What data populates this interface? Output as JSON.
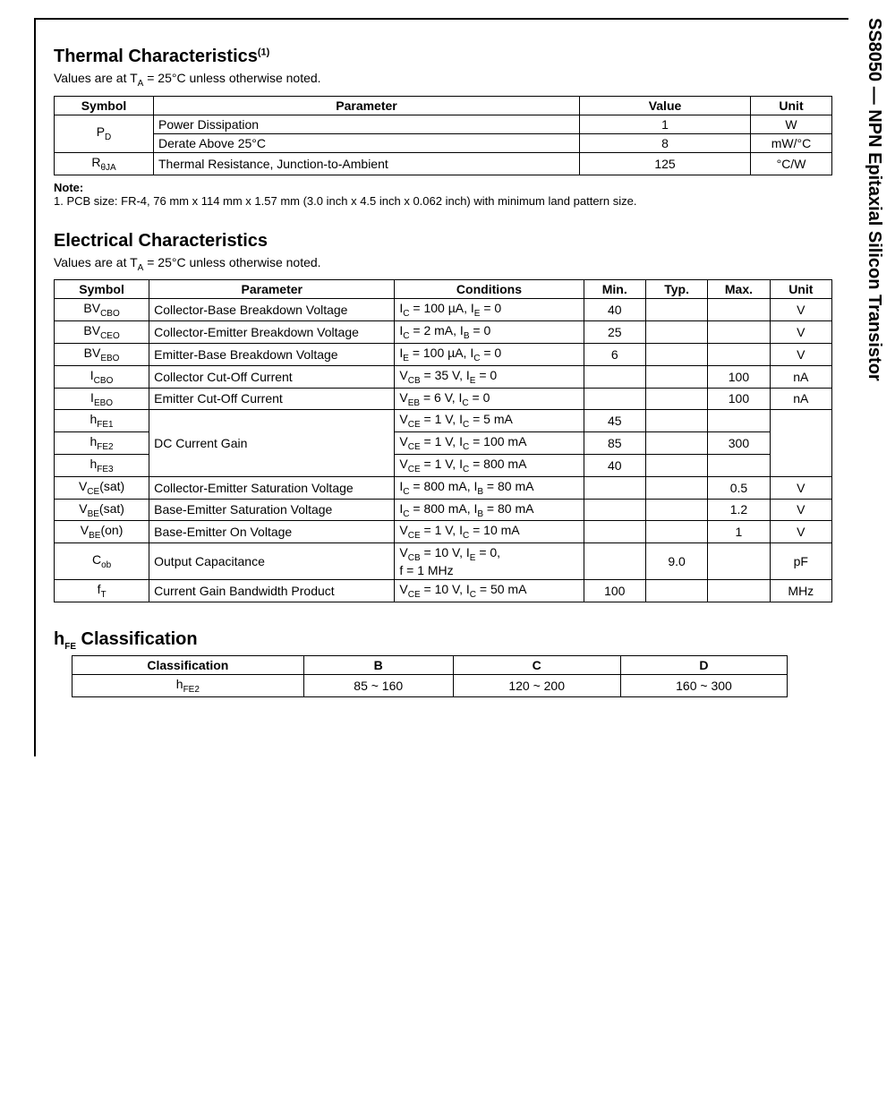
{
  "sideTitle": "SS8050 — NPN Epitaxial Silicon Transistor",
  "thermal": {
    "title_html": "Thermal Characteristics<sup>(1)</sup>",
    "subtitle_html": "Values are at T<sub>A</sub> = 25°C unless otherwise noted.",
    "headers": {
      "symbol": "Symbol",
      "parameter": "Parameter",
      "value": "Value",
      "unit": "Unit"
    },
    "rows": [
      {
        "symbol_html": "P<sub>D</sub>",
        "rowspan": 2,
        "parameter": "Power Dissipation",
        "value": "1",
        "unit": "W"
      },
      {
        "symbol_html": "",
        "rowspan": 0,
        "parameter": "Derate Above 25°C",
        "value": "8",
        "unit": "mW/°C"
      },
      {
        "symbol_html": "R<sub>θJA</sub>",
        "rowspan": 1,
        "parameter": "Thermal Resistance, Junction-to-Ambient",
        "value": "125",
        "unit": "°C/W"
      }
    ],
    "note_label": "Note:",
    "note_text": "1. PCB size: FR-4, 76 mm x 114 mm x 1.57 mm (3.0 inch x 4.5 inch x 0.062 inch) with minimum land pattern size."
  },
  "electrical": {
    "title": "Electrical Characteristics",
    "subtitle_html": "Values are at T<sub>A</sub> = 25°C unless otherwise noted.",
    "headers": {
      "symbol": "Symbol",
      "parameter": "Parameter",
      "conditions": "Conditions",
      "min": "Min.",
      "typ": "Typ.",
      "max": "Max.",
      "unit": "Unit"
    },
    "rows": [
      {
        "symbol_html": "BV<sub>CBO</sub>",
        "parameter": "Collector-Base Breakdown Voltage",
        "conditions_html": "I<sub>C</sub> = 100 µA, I<sub>E</sub> = 0",
        "min": "40",
        "typ": "",
        "max": "",
        "unit": "V"
      },
      {
        "symbol_html": "BV<sub>CEO</sub>",
        "parameter": "Collector-Emitter Breakdown Voltage",
        "conditions_html": "I<sub>C</sub> = 2 mA, I<sub>B</sub> = 0",
        "min": "25",
        "typ": "",
        "max": "",
        "unit": "V"
      },
      {
        "symbol_html": "BV<sub>EBO</sub>",
        "parameter": "Emitter-Base Breakdown Voltage",
        "conditions_html": "I<sub>E</sub> = 100 µA, I<sub>C</sub> = 0",
        "min": "6",
        "typ": "",
        "max": "",
        "unit": "V"
      },
      {
        "symbol_html": "I<sub>CBO</sub>",
        "parameter": "Collector Cut-Off Current",
        "conditions_html": "V<sub>CB</sub> = 35 V, I<sub>E</sub> = 0",
        "min": "",
        "typ": "",
        "max": "100",
        "unit": "nA"
      },
      {
        "symbol_html": "I<sub>EBO</sub>",
        "parameter": "Emitter Cut-Off Current",
        "conditions_html": "V<sub>EB</sub> = 6 V, I<sub>C</sub> = 0",
        "min": "",
        "typ": "",
        "max": "100",
        "unit": "nA"
      },
      {
        "symbol_html": "h<sub>FE1</sub>",
        "parameter": "DC Current Gain",
        "param_rowspan": 3,
        "conditions_html": "V<sub>CE</sub> = 1 V, I<sub>C</sub> = 5 mA",
        "min": "45",
        "typ": "",
        "max": "",
        "unit": "",
        "unit_rowspan": 3
      },
      {
        "symbol_html": "h<sub>FE2</sub>",
        "parameter": "",
        "param_rowspan": 0,
        "conditions_html": "V<sub>CE</sub> = 1 V, I<sub>C</sub> = 100 mA",
        "min": "85",
        "typ": "",
        "max": "300",
        "unit": "",
        "unit_rowspan": 0
      },
      {
        "symbol_html": "h<sub>FE3</sub>",
        "parameter": "",
        "param_rowspan": 0,
        "conditions_html": "V<sub>CE</sub> = 1 V, I<sub>C</sub> = 800 mA",
        "min": "40",
        "typ": "",
        "max": "",
        "unit": "",
        "unit_rowspan": 0
      },
      {
        "symbol_html": "V<sub>CE</sub>(sat)",
        "parameter": "Collector-Emitter Saturation Voltage",
        "conditions_html": "I<sub>C</sub> = 800 mA, I<sub>B</sub> = 80 mA",
        "min": "",
        "typ": "",
        "max": "0.5",
        "unit": "V"
      },
      {
        "symbol_html": "V<sub>BE</sub>(sat)",
        "parameter": "Base-Emitter Saturation Voltage",
        "conditions_html": "I<sub>C</sub> = 800 mA, I<sub>B</sub> = 80 mA",
        "min": "",
        "typ": "",
        "max": "1.2",
        "unit": "V"
      },
      {
        "symbol_html": "V<sub>BE</sub>(on)",
        "parameter": "Base-Emitter On Voltage",
        "conditions_html": "V<sub>CE</sub> = 1 V, I<sub>C</sub> = 10 mA",
        "min": "",
        "typ": "",
        "max": "1",
        "unit": "V"
      },
      {
        "symbol_html": "C<sub>ob</sub>",
        "parameter": "Output Capacitance",
        "conditions_html": "V<sub>CB</sub> = 10 V, I<sub>E</sub> = 0,<br>f = 1 MHz",
        "min": "",
        "typ": "9.0",
        "max": "",
        "unit": "pF"
      },
      {
        "symbol_html": "f<sub>T</sub>",
        "parameter": "Current Gain Bandwidth Product",
        "conditions_html": "V<sub>CE</sub> = 10 V, I<sub>C</sub> = 50 mA",
        "min": "100",
        "typ": "",
        "max": "",
        "unit": "MHz"
      }
    ]
  },
  "hfe": {
    "title_html": "h<sub>FE</sub> Classification",
    "headers": [
      "Classification",
      "B",
      "C",
      "D"
    ],
    "row_label_html": "h<sub>FE2</sub>",
    "values": [
      "85 ~ 160",
      "120 ~ 200",
      "160 ~ 300"
    ]
  },
  "colors": {
    "border": "#000000",
    "text": "#000000",
    "background": "#ffffff"
  }
}
